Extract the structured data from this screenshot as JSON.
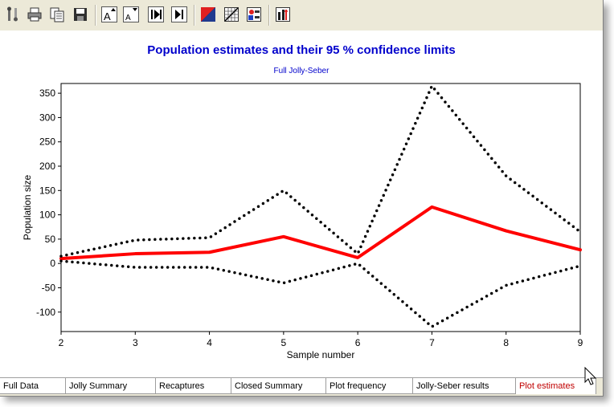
{
  "toolbar": {
    "buttons": [
      {
        "name": "tools-icon"
      },
      {
        "name": "print-icon"
      },
      {
        "name": "copy-icon"
      },
      {
        "name": "save-icon"
      },
      {
        "name": "font-larger-icon",
        "glyph": "A"
      },
      {
        "name": "font-smaller-icon",
        "glyph": "A"
      },
      {
        "name": "first-icon"
      },
      {
        "name": "last-icon"
      },
      {
        "name": "color-icon"
      },
      {
        "name": "grid-icon"
      },
      {
        "name": "legend-icon"
      },
      {
        "name": "chart-options-icon"
      }
    ]
  },
  "chart_data": {
    "type": "line",
    "title": "Population estimates and their 95 % confidence limits",
    "subtitle": "Full Jolly-Seber",
    "xlabel": "Sample number",
    "ylabel": "Population size",
    "xlim": [
      2,
      9
    ],
    "ylim": [
      -140,
      370
    ],
    "xticks": [
      "2",
      "3",
      "4",
      "5",
      "6",
      "7",
      "8",
      "9"
    ],
    "yticks": [
      "350",
      "300",
      "250",
      "200",
      "150",
      "100",
      "50",
      "0",
      "-50",
      "-100"
    ],
    "x": [
      2,
      3,
      4,
      5,
      6,
      7,
      8,
      9
    ],
    "series": [
      {
        "style": "solid",
        "color": "#ff0000",
        "values": [
          10,
          20,
          23,
          55,
          12,
          116,
          67,
          28
        ]
      },
      {
        "style": "dotted",
        "color": "#000000",
        "values": [
          15,
          48,
          53,
          150,
          20,
          365,
          180,
          65
        ]
      },
      {
        "style": "dotted",
        "color": "#000000",
        "values": [
          5,
          -8,
          -8,
          -40,
          0,
          -130,
          -45,
          -5
        ]
      }
    ]
  },
  "tabs": [
    {
      "label": "Full Data"
    },
    {
      "label": "Jolly Summary"
    },
    {
      "label": "Recaptures"
    },
    {
      "label": "Closed Summary"
    },
    {
      "label": "Plot frequency"
    },
    {
      "label": "Jolly-Seber results"
    },
    {
      "label": "Plot estimates",
      "active": true
    }
  ]
}
